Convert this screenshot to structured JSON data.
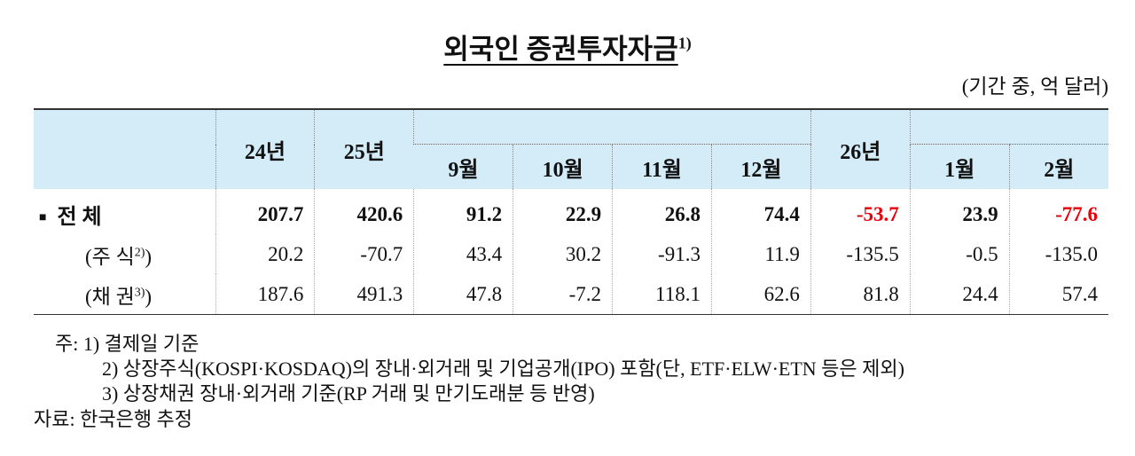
{
  "header": {
    "title": "외국인 증권투자자금",
    "title_note": "1)",
    "unit": "(기간 중, 억 달러)"
  },
  "table": {
    "columns": [
      {
        "label": "24년"
      },
      {
        "label": "25년"
      },
      {
        "children": [
          "9월",
          "10월",
          "11월",
          "12월"
        ]
      },
      {
        "label": "26년"
      },
      {
        "children": [
          "1월",
          "2월"
        ]
      }
    ],
    "negative_color": "#e8000b",
    "rows": [
      {
        "marker": "■",
        "label": "전 체",
        "bold": true,
        "highlight_negative": true,
        "values": [
          "207.7",
          "420.6",
          "91.2",
          "22.9",
          "26.8",
          "74.4",
          "-53.7",
          "23.9",
          "-77.6"
        ]
      },
      {
        "prefix": "(",
        "label": "주 식",
        "note": "2)",
        "suffix": ")",
        "values": [
          "20.2",
          "-70.7",
          "43.4",
          "30.2",
          "-91.3",
          "11.9",
          "-135.5",
          "-0.5",
          "-135.0"
        ]
      },
      {
        "prefix": "(",
        "label": "채 권",
        "note": "3)",
        "suffix": ")",
        "values": [
          "187.6",
          "491.3",
          "47.8",
          "-7.2",
          "118.1",
          "62.6",
          "81.8",
          "24.4",
          "57.4"
        ]
      }
    ]
  },
  "notes": {
    "label": "주:",
    "items": [
      "1) 결제일 기준",
      "2) 상장주식(KOSPI·KOSDAQ)의 장내·외거래 및 기업공개(IPO) 포함(단, ETF·ELW·ETN 등은 제외)",
      "3) 상장채권 장내·외거래 기준(RP 거래 및 만기도래분 등 반영)"
    ]
  },
  "source": "자료: 한국은행 추정"
}
